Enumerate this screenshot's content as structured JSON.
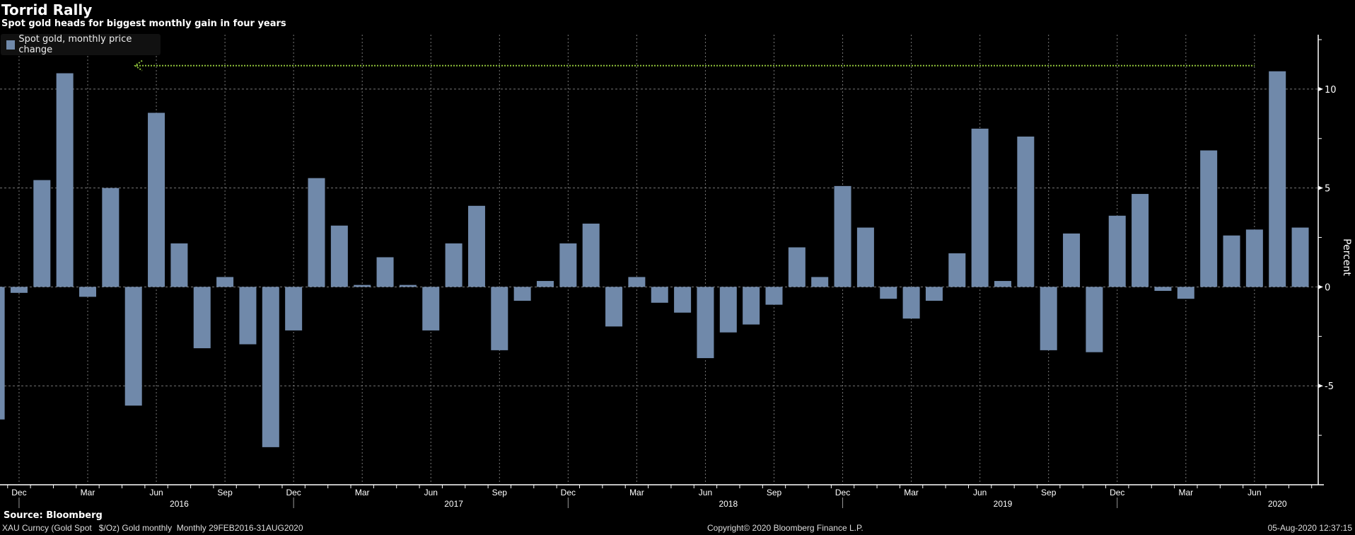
{
  "header": {
    "title": "Torrid Rally",
    "subtitle": "Spot gold heads for biggest monthly gain in four years"
  },
  "footer": {
    "source": "Source: Bloomberg",
    "ticker": "XAU Curncy (Gold Spot   $/Oz) Gold monthly  Monthly 29FEB2016-31AUG2020",
    "copyright": "Copyright© 2020 Bloomberg Finance L.P.",
    "timestamp": "05-Aug-2020 12:37:15"
  },
  "colors": {
    "bar": "#7089aa",
    "arrow": "#8fc33a",
    "grid": "#777777",
    "axis": "#ffffff"
  },
  "chart_data": {
    "type": "bar",
    "title": "Torrid Rally",
    "subtitle": "Spot gold heads for biggest monthly gain in four years",
    "legend": {
      "entries": [
        "Spot gold, monthly price change"
      ],
      "placement": "top-left"
    },
    "ylabel": "Percent",
    "ylim": [
      -10,
      12.75
    ],
    "yticks": [
      -5,
      0,
      5,
      10
    ],
    "grid": true,
    "start_month": "2015-11",
    "x_tick_labels": [
      "Dec",
      "Mar",
      "Jun",
      "Sep",
      "Dec",
      "Mar",
      "Jun",
      "Sep",
      "Dec",
      "Mar",
      "Jun",
      "Sep",
      "Dec",
      "Mar",
      "Jun",
      "Sep",
      "Dec",
      "Mar",
      "Jun"
    ],
    "year_labels": [
      "2016",
      "2017",
      "2018",
      "2019",
      "2020"
    ],
    "annotation": {
      "type": "dotted-arrow",
      "value": 10.9,
      "direction": "left"
    },
    "values": [
      -6.7,
      -0.3,
      5.4,
      10.8,
      -0.5,
      5.0,
      -6.0,
      8.8,
      2.2,
      -3.1,
      0.5,
      -2.9,
      -8.1,
      -2.2,
      5.5,
      3.1,
      0.1,
      1.5,
      0.1,
      -2.2,
      2.2,
      4.1,
      -3.2,
      -0.7,
      0.3,
      2.2,
      3.2,
      -2.0,
      0.5,
      -0.8,
      -1.3,
      -3.6,
      -2.3,
      -1.9,
      -0.9,
      2.0,
      0.5,
      5.1,
      3.0,
      -0.6,
      -1.6,
      -0.7,
      1.7,
      8.0,
      0.3,
      7.6,
      -3.2,
      2.7,
      -3.3,
      3.6,
      4.7,
      -0.2,
      -0.6,
      6.9,
      2.6,
      2.9,
      10.9,
      3.0
    ]
  }
}
